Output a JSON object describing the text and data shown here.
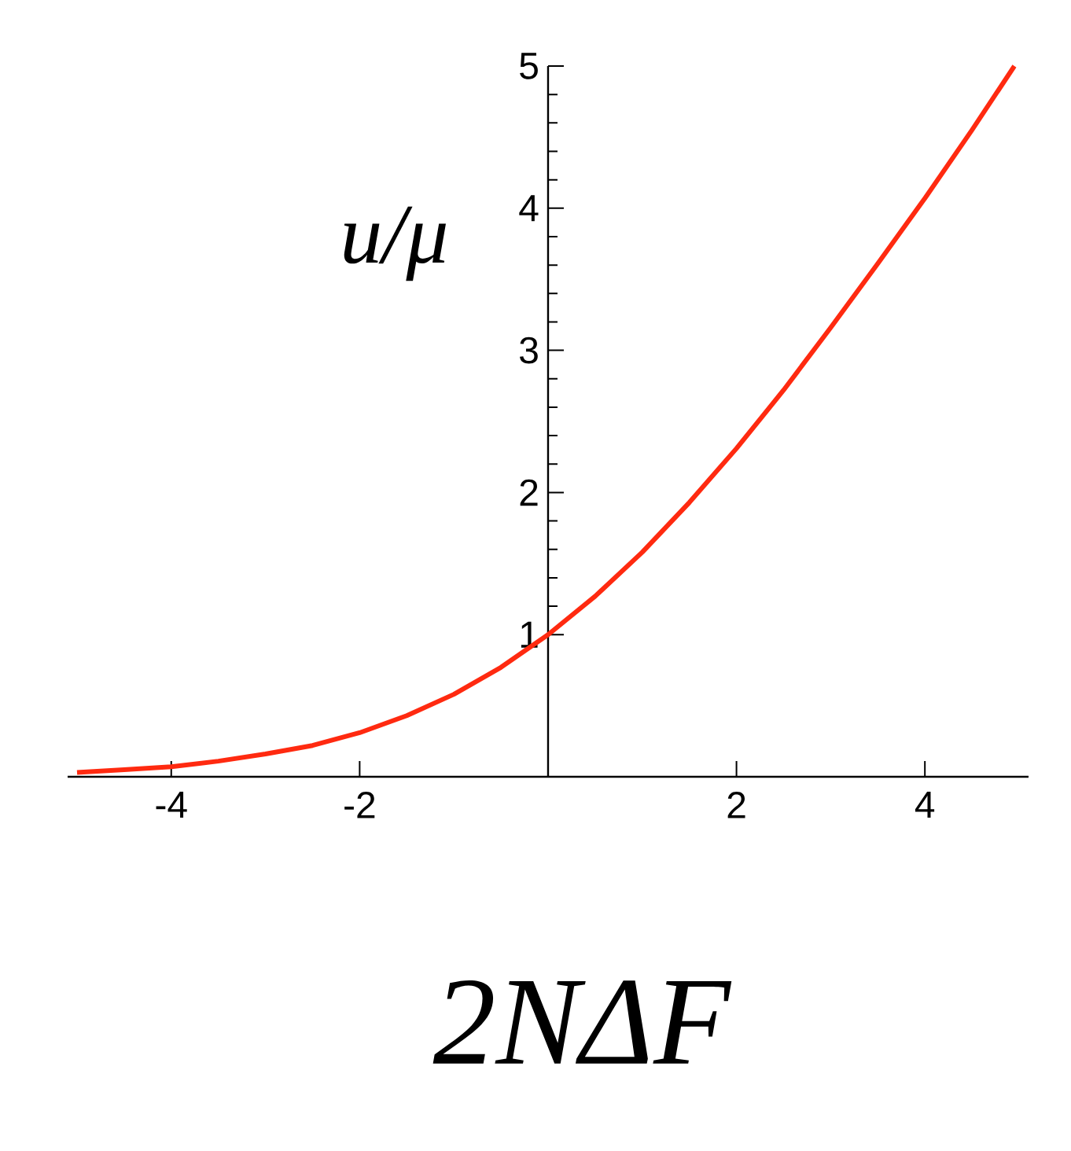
{
  "chart_data": {
    "type": "line",
    "xlabel": "2NΔF",
    "ylabel": "u/μ",
    "x": [
      -5,
      -4.5,
      -4,
      -3.5,
      -3,
      -2.5,
      -2,
      -1.5,
      -1,
      -0.5,
      0,
      0.5,
      1,
      1.5,
      2,
      2.5,
      3,
      3.5,
      4,
      4.5,
      4.95
    ],
    "series": [
      {
        "color": "#ff2a10",
        "values": [
          0.03,
          0.05,
          0.07,
          0.11,
          0.16,
          0.22,
          0.31,
          0.43,
          0.58,
          0.77,
          1,
          1.27,
          1.58,
          1.93,
          2.31,
          2.72,
          3.16,
          3.61,
          4.07,
          4.55,
          5.0
        ]
      }
    ],
    "xlim": [
      -5.1,
      5.1
    ],
    "ylim": [
      0,
      5
    ],
    "xticks": [
      -4,
      -2,
      2,
      4
    ],
    "yticks": [
      1,
      2,
      3,
      4,
      5
    ],
    "grid": false,
    "marker": "none",
    "line_style": "solid"
  }
}
